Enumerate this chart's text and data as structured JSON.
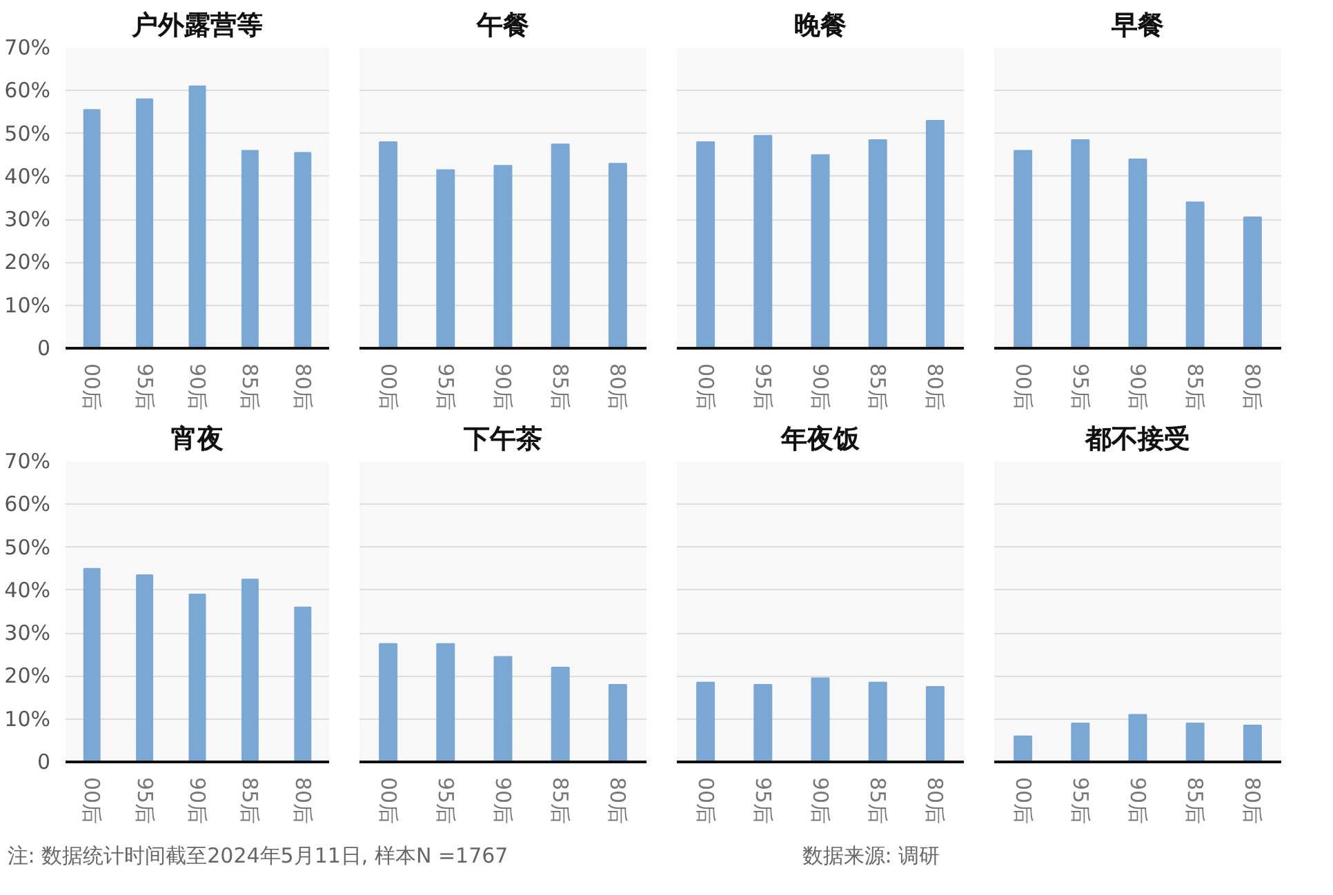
{
  "chart_data": [
    {
      "type": "bar",
      "title": "户外露营等",
      "categories": [
        "00后",
        "95后",
        "90后",
        "85后",
        "80后"
      ],
      "values": [
        55.5,
        58,
        61,
        46,
        45.5
      ],
      "color": "#7ba7d4",
      "ylim": [
        0,
        70
      ],
      "yticks": [
        {
          "value": 0,
          "label": "0"
        },
        {
          "value": 10,
          "label": "10%"
        },
        {
          "value": 20,
          "label": "20%"
        },
        {
          "value": 30,
          "label": "30%"
        },
        {
          "value": 40,
          "label": "40%"
        },
        {
          "value": 50,
          "label": "50%"
        },
        {
          "value": 60,
          "label": "60%"
        },
        {
          "value": 70,
          "label": "70%"
        }
      ],
      "grid": "y",
      "annotations": [
        "注: 数据统计时间截至2024年5月11日, 样本N =1767",
        "数据来源: 调研"
      ]
    },
    {
      "type": "bar",
      "title": "午餐",
      "categories": [
        "00后",
        "95后",
        "90后",
        "85后",
        "80后"
      ],
      "values": [
        48,
        41.5,
        42.5,
        47.5,
        43
      ],
      "color": "#7ba7d4",
      "ylim": [
        0,
        70
      ],
      "yticks": [
        0,
        10,
        20,
        30,
        40,
        50,
        60,
        70
      ],
      "grid": "y",
      "tick_labels": "x"
    },
    {
      "type": "bar",
      "title": "晚餐",
      "categories": [
        "00后",
        "95后",
        "90后",
        "85后",
        "80后"
      ],
      "values": [
        48,
        49.5,
        45,
        48.5,
        53
      ],
      "color": "#7ba7d4",
      "ylim": [
        0,
        70
      ],
      "yticks": [
        0,
        10,
        20,
        30,
        40,
        50,
        60,
        70
      ],
      "grid": "y",
      "tick_labels": "x"
    },
    {
      "type": "bar",
      "title": "早餐",
      "categories": [
        "00后",
        "95后",
        "90后",
        "85后",
        "80后"
      ],
      "values": [
        46,
        48.5,
        44,
        34,
        30.5
      ],
      "color": "#7ba7d4",
      "ylim": [
        0,
        70
      ],
      "yticks": [
        0,
        10,
        20,
        30,
        40,
        50,
        60,
        70
      ],
      "grid": "y",
      "tick_labels": "x"
    },
    {
      "type": "bar",
      "title": "宵夜",
      "categories": [
        "00后",
        "95后",
        "90后",
        "85后",
        "80后"
      ],
      "values": [
        45,
        43.5,
        39,
        42.5,
        36
      ],
      "color": "#7ba7d4",
      "ylim": [
        0,
        70
      ],
      "yticks": [
        {
          "value": 0,
          "label": "0"
        },
        {
          "value": 10,
          "label": "10%"
        },
        {
          "value": 20,
          "label": "20%"
        },
        {
          "value": 30,
          "label": "30%"
        },
        {
          "value": 40,
          "label": "40%"
        },
        {
          "value": 50,
          "label": "50%"
        },
        {
          "value": 60,
          "label": "60%"
        },
        {
          "value": 70,
          "label": "70%"
        }
      ],
      "grid": "y"
    },
    {
      "type": "bar",
      "title": "下午茶",
      "categories": [
        "00后",
        "95后",
        "90后",
        "85后",
        "80后"
      ],
      "values": [
        27.5,
        27.5,
        24.5,
        22,
        18
      ],
      "color": "#7ba7d4",
      "ylim": [
        0,
        70
      ],
      "yticks": [
        0,
        10,
        20,
        30,
        40,
        50,
        60,
        70
      ],
      "grid": "y",
      "tick_labels": "x"
    },
    {
      "type": "bar",
      "title": "年夜饭",
      "categories": [
        "00后",
        "95后",
        "90后",
        "85后",
        "80后"
      ],
      "values": [
        18.5,
        18,
        19.5,
        18.5,
        17.5
      ],
      "color": "#7ba7d4",
      "ylim": [
        0,
        70
      ],
      "yticks": [
        0,
        10,
        20,
        30,
        40,
        50,
        60,
        70
      ],
      "grid": "y",
      "tick_labels": "x"
    },
    {
      "type": "bar",
      "title": "都不接受",
      "categories": [
        "00后",
        "95后",
        "90后",
        "85后",
        "80后"
      ],
      "values": [
        6,
        9,
        11,
        9,
        8.5
      ],
      "color": "#7ba7d4",
      "ylim": [
        0,
        70
      ],
      "yticks": [
        0,
        10,
        20,
        30,
        40,
        50,
        60,
        70
      ],
      "grid": "y",
      "tick_labels": "x"
    }
  ]
}
